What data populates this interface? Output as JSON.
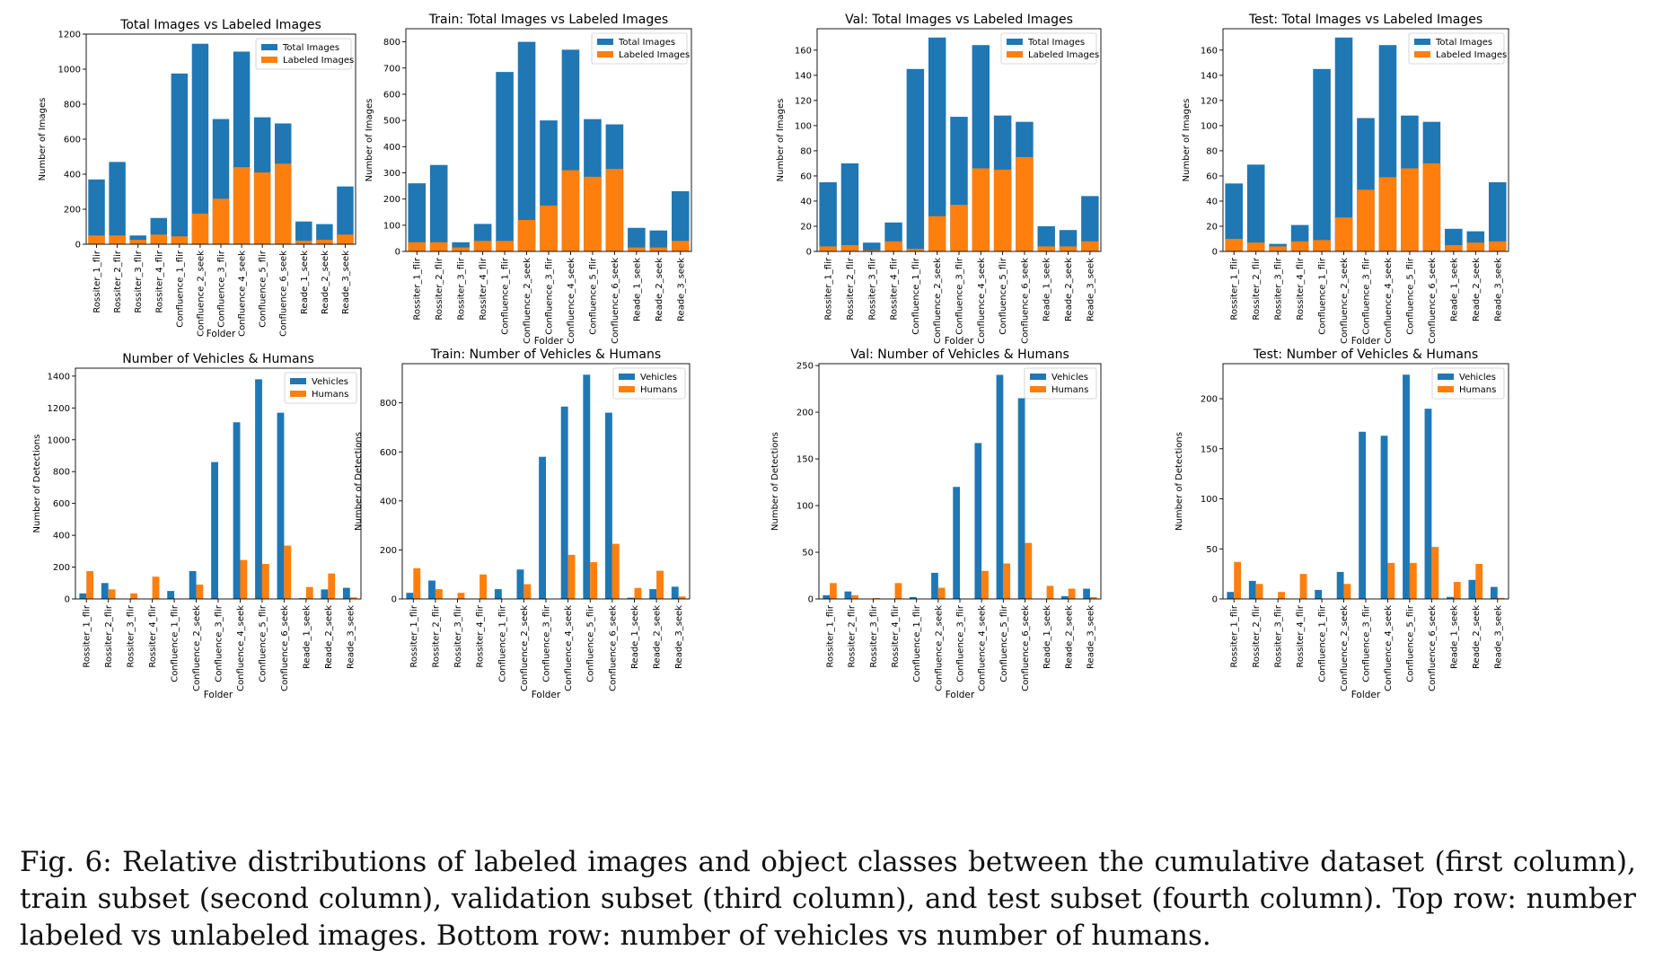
{
  "caption": "Fig. 6: Relative distributions of labeled images and object classes between the cumulative dataset (first column), train subset (second column), validation subset (third column), and test subset (fourth column). Top row: number labeled vs unlabeled images. Bottom row: number of vehicles vs number of humans.",
  "colors": {
    "blue": "#1f77b4",
    "orange": "#ff7f0e"
  },
  "chart_data": [
    {
      "type": "bar",
      "stacked": "overlay",
      "title": "Total Images vs Labeled Images",
      "xlabel": "Folder",
      "ylabel": "Number of Images",
      "ylim": [
        0,
        1200
      ],
      "yticks": [
        "0",
        "200",
        "400",
        "600",
        "800",
        "1000",
        "1200"
      ],
      "legend": "top-right",
      "categories": [
        "Rossiter_1_flir",
        "Rossiter_2_flir",
        "Rossiter_3_flir",
        "Rossiter_4_flir",
        "Confluence_1_flir",
        "Confluence_2_seek",
        "Confluence_3_flir",
        "Confluence_4_seek",
        "Confluence_5_flir",
        "Confluence_6_seek",
        "Reade_1_seek",
        "Reade_2_seek",
        "Reade_3_seek"
      ],
      "series": [
        {
          "name": "Total Images",
          "values": [
            370,
            470,
            50,
            150,
            975,
            1145,
            715,
            1100,
            725,
            690,
            130,
            115,
            330
          ]
        },
        {
          "name": "Labeled Images",
          "values": [
            50,
            50,
            25,
            55,
            45,
            175,
            260,
            440,
            410,
            460,
            20,
            25,
            55
          ]
        }
      ]
    },
    {
      "type": "bar",
      "stacked": "overlay",
      "title": "Train: Total Images vs Labeled Images",
      "xlabel": "Folder",
      "ylabel": "Number of Images",
      "ylim": [
        0,
        850
      ],
      "yticks": [
        "0",
        "100",
        "200",
        "300",
        "400",
        "500",
        "600",
        "700",
        "800"
      ],
      "legend": "top-right",
      "categories": [
        "Rossiter_1_flir",
        "Rossiter_2_flir",
        "Rossiter_3_flir",
        "Rossiter_4_flir",
        "Confluence_1_flir",
        "Confluence_2_seek",
        "Confluence_3_flir",
        "Confluence_4_seek",
        "Confluence_5_flir",
        "Confluence_6_seek",
        "Reade_1_seek",
        "Reade_2_seek",
        "Reade_3_seek"
      ],
      "series": [
        {
          "name": "Total Images",
          "values": [
            260,
            330,
            35,
            105,
            685,
            800,
            500,
            770,
            505,
            485,
            90,
            80,
            230
          ]
        },
        {
          "name": "Labeled Images",
          "values": [
            35,
            35,
            15,
            40,
            40,
            120,
            175,
            310,
            285,
            315,
            15,
            15,
            40
          ]
        }
      ]
    },
    {
      "type": "bar",
      "stacked": "overlay",
      "title": "Val: Total Images vs Labeled Images",
      "xlabel": "Folder",
      "ylabel": "Number of Images",
      "ylim": [
        0,
        177
      ],
      "yticks": [
        "0",
        "20",
        "40",
        "60",
        "80",
        "100",
        "120",
        "140",
        "160"
      ],
      "legend": "top-right",
      "categories": [
        "Rossiter_1_flir",
        "Rossiter_2_flir",
        "Rossiter_3_flir",
        "Rossiter_4_flir",
        "Confluence_1_flir",
        "Confluence_2_seek",
        "Confluence_3_flir",
        "Confluence_4_seek",
        "Confluence_5_flir",
        "Confluence_6_seek",
        "Reade_1_seek",
        "Reade_2_seek",
        "Reade_3_seek"
      ],
      "series": [
        {
          "name": "Total Images",
          "values": [
            55,
            70,
            7,
            23,
            145,
            170,
            107,
            164,
            108,
            103,
            20,
            17,
            44
          ]
        },
        {
          "name": "Labeled Images",
          "values": [
            4,
            5,
            1,
            8,
            2,
            28,
            37,
            66,
            65,
            75,
            4,
            4,
            8
          ]
        }
      ]
    },
    {
      "type": "bar",
      "stacked": "overlay",
      "title": "Test: Total Images vs Labeled Images",
      "xlabel": "Folder",
      "ylabel": "Number of Images",
      "ylim": [
        0,
        177
      ],
      "yticks": [
        "0",
        "20",
        "40",
        "60",
        "80",
        "100",
        "120",
        "140",
        "160"
      ],
      "legend": "top-right",
      "categories": [
        "Rossiter_1_flir",
        "Rossiter_2_flir",
        "Rossiter_3_flir",
        "Rossiter_4_flir",
        "Confluence_1_flir",
        "Confluence_2_seek",
        "Confluence_3_flir",
        "Confluence_4_seek",
        "Confluence_5_flir",
        "Confluence_6_seek",
        "Reade_1_seek",
        "Reade_2_seek",
        "Reade_3_seek"
      ],
      "series": [
        {
          "name": "Total Images",
          "values": [
            54,
            69,
            6,
            21,
            145,
            170,
            106,
            164,
            108,
            103,
            18,
            16,
            55
          ]
        },
        {
          "name": "Labeled Images",
          "values": [
            10,
            7,
            4,
            8,
            9,
            27,
            49,
            59,
            66,
            70,
            5,
            7,
            8
          ]
        }
      ]
    },
    {
      "type": "bar",
      "grouped": true,
      "title": "Number of Vehicles & Humans",
      "xlabel": "Folder",
      "ylabel": "Number of Detections",
      "ylim": [
        0,
        1450
      ],
      "yticks": [
        "0",
        "200",
        "400",
        "600",
        "800",
        "1000",
        "1200",
        "1400"
      ],
      "legend": "top-right",
      "categories": [
        "Rossiter_1_flir",
        "Rossiter_2_flir",
        "Rossiter_3_flir",
        "Rossiter_4_flir",
        "Confluence_1_flir",
        "Confluence_2_seek",
        "Confluence_3_flir",
        "Confluence_4_seek",
        "Confluence_5_flir",
        "Confluence_6_seek",
        "Reade_1_seek",
        "Reade_2_seek",
        "Reade_3_seek"
      ],
      "series": [
        {
          "name": "Vehicles",
          "values": [
            35,
            100,
            0,
            0,
            50,
            175,
            860,
            1110,
            1380,
            1170,
            5,
            60,
            70
          ]
        },
        {
          "name": "Humans",
          "values": [
            175,
            60,
            35,
            140,
            0,
            90,
            0,
            245,
            220,
            335,
            75,
            160,
            10
          ]
        }
      ]
    },
    {
      "type": "bar",
      "grouped": true,
      "title": "Train: Number of Vehicles & Humans",
      "xlabel": "Folder",
      "ylabel": "Number of Detections",
      "ylim": [
        0,
        960
      ],
      "yticks": [
        "0",
        "200",
        "400",
        "600",
        "800"
      ],
      "legend": "top-right",
      "categories": [
        "Rossiter_1_flir",
        "Rossiter_2_flir",
        "Rossiter_3_flir",
        "Rossiter_4_flir",
        "Confluence_1_flir",
        "Confluence_2_seek",
        "Confluence_3_flir",
        "Confluence_4_seek",
        "Confluence_5_flir",
        "Confluence_6_seek",
        "Reade_1_seek",
        "Reade_2_seek",
        "Reade_3_seek"
      ],
      "series": [
        {
          "name": "Vehicles",
          "values": [
            25,
            75,
            0,
            0,
            40,
            120,
            580,
            785,
            915,
            760,
            5,
            40,
            50
          ]
        },
        {
          "name": "Humans",
          "values": [
            125,
            40,
            25,
            100,
            0,
            60,
            0,
            180,
            150,
            225,
            45,
            115,
            10
          ]
        }
      ]
    },
    {
      "type": "bar",
      "grouped": true,
      "title": "Val: Number of Vehicles & Humans",
      "xlabel": "Folder",
      "ylabel": "Number of Detections",
      "ylim": [
        0,
        252
      ],
      "yticks": [
        "0",
        "50",
        "100",
        "150",
        "200",
        "250"
      ],
      "legend": "top-right",
      "categories": [
        "Rossiter_1_flir",
        "Rossiter_2_flir",
        "Rossiter_3_flir",
        "Rossiter_4_flir",
        "Confluence_1_flir",
        "Confluence_2_seek",
        "Confluence_3_flir",
        "Confluence_4_seek",
        "Confluence_5_flir",
        "Confluence_6_seek",
        "Reade_1_seek",
        "Reade_2_seek",
        "Reade_3_seek"
      ],
      "series": [
        {
          "name": "Vehicles",
          "values": [
            4,
            8,
            0,
            0,
            2,
            28,
            120,
            167,
            240,
            215,
            0,
            3,
            11
          ]
        },
        {
          "name": "Humans",
          "values": [
            17,
            4,
            1,
            17,
            0,
            12,
            0,
            30,
            38,
            60,
            14,
            11,
            2
          ]
        }
      ]
    },
    {
      "type": "bar",
      "grouped": true,
      "title": "Test: Number of Vehicles & Humans",
      "xlabel": "Folder",
      "ylabel": "Number of Detections",
      "ylim": [
        0,
        235
      ],
      "yticks": [
        "0",
        "50",
        "100",
        "150",
        "200"
      ],
      "legend": "top-right",
      "categories": [
        "Rossiter_1_flir",
        "Rossiter_2_flir",
        "Rossiter_3_flir",
        "Rossiter_4_flir",
        "Confluence_1_flir",
        "Confluence_2_seek",
        "Confluence_3_flir",
        "Confluence_4_seek",
        "Confluence_5_flir",
        "Confluence_6_seek",
        "Reade_1_seek",
        "Reade_2_seek",
        "Reade_3_seek"
      ],
      "series": [
        {
          "name": "Vehicles",
          "values": [
            7,
            18,
            0,
            0,
            9,
            27,
            167,
            163,
            224,
            190,
            2,
            19,
            12
          ]
        },
        {
          "name": "Humans",
          "values": [
            37,
            15,
            7,
            25,
            0,
            15,
            0,
            36,
            36,
            52,
            17,
            35,
            1
          ]
        }
      ]
    }
  ]
}
